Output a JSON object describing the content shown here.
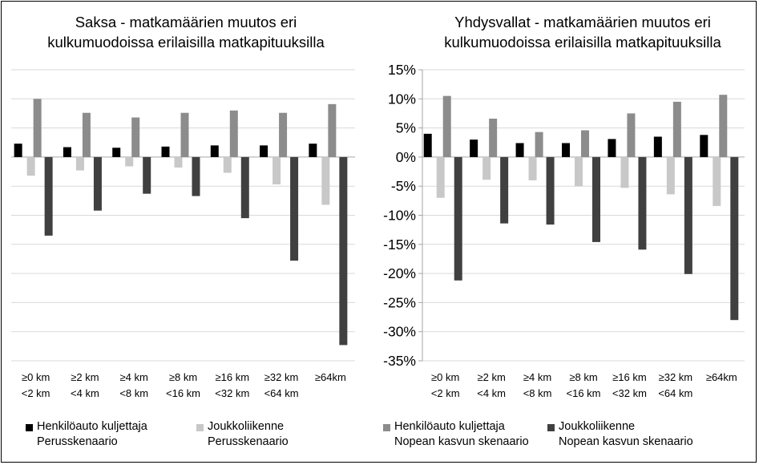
{
  "chart_data": [
    {
      "type": "bar",
      "title_lines": [
        "Saksa - matkamäärien muutos eri",
        "kulkumuodoissa erilaisilla matkapituuksilla"
      ],
      "categories": [
        [
          "≥0 km",
          "<2 km"
        ],
        [
          "≥2 km",
          "<4 km"
        ],
        [
          "≥4 km",
          "<8 km"
        ],
        [
          "≥8 km",
          "<16 km"
        ],
        [
          "≥16 km",
          "<32 km"
        ],
        [
          "≥32 km",
          "<64 km"
        ],
        [
          "≥64km",
          ""
        ]
      ],
      "ylim": [
        -35,
        15
      ],
      "y_ticks_shown": false,
      "series": [
        {
          "name": "Henkilöauto kuljettaja Perusskenaario",
          "values": [
            2.3,
            1.7,
            1.6,
            1.8,
            2.0,
            2.0,
            2.3
          ]
        },
        {
          "name": "Joukkoliikenne Perusskenaario",
          "values": [
            -3.2,
            -2.3,
            -1.6,
            -1.8,
            -2.7,
            -4.7,
            -8.2
          ]
        },
        {
          "name": "Henkilöauto kuljettaja Nopean kasvun skenaario",
          "values": [
            10.0,
            7.6,
            6.8,
            7.6,
            8.0,
            7.6,
            9.1
          ]
        },
        {
          "name": "Joukkoliikenne Nopean kasvun skenaario",
          "values": [
            -13.5,
            -9.2,
            -6.3,
            -6.7,
            -10.5,
            -17.8,
            -32.3
          ]
        }
      ]
    },
    {
      "type": "bar",
      "title_lines": [
        "Yhdysvallat - matkamäärien muutos eri",
        "kulkumuodoissa erilaisilla matkapituuksilla"
      ],
      "categories": [
        [
          "≥0 km",
          "<2 km"
        ],
        [
          "≥2 km",
          "<4 km"
        ],
        [
          "≥4 km",
          "<8 km"
        ],
        [
          "≥8 km",
          "<16 km"
        ],
        [
          "≥16 km",
          "<32 km"
        ],
        [
          "≥32 km",
          "<64 km"
        ],
        [
          "≥64km",
          ""
        ]
      ],
      "ylim": [
        -35,
        15
      ],
      "y_ticks": [
        15,
        10,
        5,
        0,
        -5,
        -10,
        -15,
        -20,
        -25,
        -30,
        -35
      ],
      "y_tick_labels": [
        "15%",
        "10%",
        "5%",
        "0%",
        "-5%",
        "-10%",
        "-15%",
        "-20%",
        "-25%",
        "-30%",
        "-35%"
      ],
      "series": [
        {
          "name": "Henkilöauto kuljettaja Perusskenaario",
          "values": [
            4.0,
            3.0,
            2.4,
            2.4,
            3.1,
            3.5,
            3.8
          ]
        },
        {
          "name": "Joukkoliikenne Perusskenaario",
          "values": [
            -7.0,
            -3.9,
            -4.0,
            -5.0,
            -5.3,
            -6.4,
            -8.4
          ]
        },
        {
          "name": "Henkilöauto kuljettaja Nopean kasvun skenaario",
          "values": [
            10.5,
            6.6,
            4.3,
            4.6,
            7.5,
            9.5,
            10.7
          ]
        },
        {
          "name": "Joukkoliikenne Nopean kasvun skenaario",
          "values": [
            -21.2,
            -11.4,
            -11.6,
            -14.6,
            -15.9,
            -20.1,
            -28.0
          ]
        }
      ]
    }
  ],
  "colors": {
    "series": [
      "#000000",
      "#c8c8c8",
      "#8c8c8c",
      "#404040"
    ],
    "grid": "#d9d9d9",
    "axis": "#a6a6a6"
  },
  "legend": [
    {
      "line1": "Henkilöauto kuljettaja",
      "line2": "Perusskenaario"
    },
    {
      "line1": "Joukkoliikenne",
      "line2": "Perusskenaario"
    },
    {
      "line1": "Henkilöauto kuljettaja",
      "line2": "Nopean kasvun skenaario"
    },
    {
      "line1": "Joukkoliikenne",
      "line2": "Nopean kasvun skenaario"
    }
  ]
}
